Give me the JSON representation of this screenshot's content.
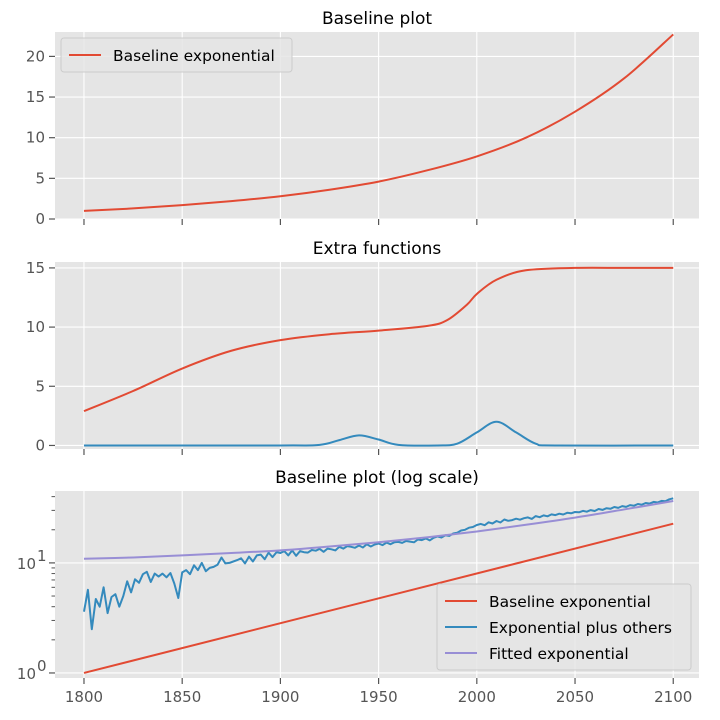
{
  "colors": {
    "axes_bg": "#E5E5E5",
    "grid": "#FFFFFF",
    "tick": "#555555",
    "red": "#E24A33",
    "blue": "#348ABD",
    "purple": "#988ED5"
  },
  "chart_data": [
    {
      "type": "line",
      "title": "Baseline plot",
      "xlim": [
        1800,
        2100
      ],
      "ylim": [
        0,
        23
      ],
      "xticks": [
        1800,
        1850,
        1900,
        1950,
        2000,
        2050,
        2100
      ],
      "yticks": [
        0,
        5,
        10,
        15,
        20
      ],
      "ytick_labels": [
        "0",
        "5",
        "10",
        "15",
        "20"
      ],
      "show_xtick_labels": false,
      "legend": {
        "location": "upper left"
      },
      "series": [
        {
          "name": "Baseline exponential",
          "color": "#E24A33",
          "x": [
            1800,
            1825,
            1850,
            1875,
            1900,
            1925,
            1950,
            1975,
            2000,
            2025,
            2050,
            2075,
            2100
          ],
          "y": [
            1.0,
            1.3,
            1.7,
            2.2,
            2.8,
            3.6,
            4.6,
            6.0,
            7.7,
            10.0,
            13.2,
            17.3,
            22.7
          ]
        }
      ]
    },
    {
      "type": "line",
      "title": "Extra functions",
      "xlim": [
        1800,
        2100
      ],
      "ylim": [
        -0.3,
        15.5
      ],
      "xticks": [
        1800,
        1850,
        1900,
        1950,
        2000,
        2050,
        2100
      ],
      "yticks": [
        0,
        5,
        10,
        15
      ],
      "ytick_labels": [
        "0",
        "5",
        "10",
        "15"
      ],
      "show_xtick_labels": false,
      "series": [
        {
          "color": "#E24A33",
          "x": [
            1800,
            1825,
            1850,
            1875,
            1900,
            1925,
            1950,
            1975,
            1985,
            1995,
            2000,
            2010,
            2025,
            2050,
            2075,
            2100
          ],
          "y": [
            2.9,
            4.6,
            6.5,
            8.0,
            8.9,
            9.4,
            9.7,
            10.1,
            10.6,
            11.9,
            12.8,
            14.0,
            14.8,
            15.0,
            15.0,
            15.0
          ],
          "smooth": true
        },
        {
          "color": "#348ABD",
          "x": [
            1800,
            1900,
            1920,
            1930,
            1940,
            1950,
            1960,
            1980,
            1990,
            2000,
            2010,
            2020,
            2030,
            2040,
            2100
          ],
          "y": [
            0,
            0,
            0.05,
            0.45,
            0.85,
            0.5,
            0.05,
            0,
            0.15,
            1.1,
            2.0,
            1.1,
            0.15,
            0,
            0
          ],
          "smooth": true
        }
      ]
    },
    {
      "type": "line",
      "title": "Baseline plot (log scale)",
      "yscale": "log",
      "xlim": [
        1800,
        2100
      ],
      "ylim": [
        0.9,
        45
      ],
      "xticks": [
        1800,
        1850,
        1900,
        1950,
        2000,
        2050,
        2100
      ],
      "xtick_labels": [
        "1800",
        "1850",
        "1900",
        "1950",
        "2000",
        "2050",
        "2100"
      ],
      "ytick_major": [
        1,
        10
      ],
      "ytick_labels": [
        "10",
        "10"
      ],
      "ytick_exponents": [
        "0",
        "1"
      ],
      "legend": {
        "location": "lower right"
      },
      "series": [
        {
          "name": "Baseline exponential",
          "color": "#E24A33",
          "x": [
            1800,
            2100
          ],
          "y": [
            1.0,
            22.7
          ]
        },
        {
          "name": "Exponential plus others",
          "color": "#348ABD",
          "x": [
            1800,
            1802,
            1804,
            1806,
            1808,
            1810,
            1812,
            1814,
            1816,
            1818,
            1820,
            1822,
            1824,
            1826,
            1828,
            1830,
            1832,
            1834,
            1836,
            1838,
            1840,
            1842,
            1844,
            1846,
            1848,
            1850,
            1852,
            1854,
            1856,
            1858,
            1860,
            1862,
            1864,
            1866,
            1868,
            1870,
            1872,
            1874,
            1876,
            1878,
            1880,
            1882,
            1884,
            1886,
            1888,
            1890,
            1892,
            1894,
            1896,
            1898,
            1900,
            1902,
            1904,
            1906,
            1908,
            1910,
            1912,
            1914,
            1916,
            1918,
            1920,
            1922,
            1924,
            1926,
            1928,
            1930,
            1932,
            1934,
            1936,
            1938,
            1940,
            1942,
            1944,
            1946,
            1948,
            1950,
            1952,
            1954,
            1956,
            1958,
            1960,
            1962,
            1964,
            1966,
            1968,
            1970,
            1972,
            1974,
            1976,
            1978,
            1980,
            1982,
            1984,
            1986,
            1988,
            1990,
            1992,
            1994,
            1996,
            1998,
            2000,
            2002,
            2004,
            2006,
            2008,
            2010,
            2012,
            2014,
            2016,
            2018,
            2020,
            2022,
            2024,
            2026,
            2028,
            2030,
            2032,
            2034,
            2036,
            2038,
            2040,
            2042,
            2044,
            2046,
            2048,
            2050,
            2052,
            2054,
            2056,
            2058,
            2060,
            2062,
            2064,
            2066,
            2068,
            2070,
            2072,
            2074,
            2076,
            2078,
            2080,
            2082,
            2084,
            2086,
            2088,
            2090,
            2092,
            2094,
            2096,
            2098,
            2100
          ],
          "y": [
            3.6,
            5.7,
            2.5,
            4.7,
            4.0,
            6.0,
            3.5,
            4.9,
            5.2,
            4.0,
            5.0,
            6.8,
            5.4,
            7.1,
            6.6,
            7.9,
            8.3,
            6.7,
            8.0,
            7.5,
            8.0,
            7.4,
            8.1,
            6.5,
            4.8,
            8.2,
            8.6,
            7.9,
            9.5,
            8.6,
            10.0,
            8.4,
            9.0,
            9.2,
            9.6,
            11.2,
            9.9,
            10.0,
            10.3,
            10.6,
            11.0,
            9.9,
            11.4,
            10.3,
            11.7,
            11.9,
            10.8,
            12.4,
            11.3,
            12.5,
            12.3,
            12.8,
            11.7,
            13.0,
            11.6,
            12.8,
            12.5,
            12.4,
            13.1,
            12.9,
            13.4,
            12.6,
            13.5,
            13.3,
            13.0,
            14.0,
            13.5,
            14.2,
            14.0,
            13.7,
            14.4,
            13.8,
            14.8,
            14.1,
            14.7,
            15.0,
            14.5,
            15.3,
            14.8,
            15.4,
            15.5,
            15.2,
            15.8,
            15.6,
            15.4,
            16.3,
            16.1,
            16.7,
            16.0,
            16.9,
            17.4,
            17.0,
            17.8,
            17.6,
            18.5,
            18.8,
            19.7,
            20.0,
            20.9,
            21.2,
            22.1,
            22.6,
            22.0,
            23.4,
            22.8,
            24.0,
            23.3,
            24.8,
            24.1,
            24.5,
            25.2,
            24.7,
            25.5,
            25.9,
            25.1,
            26.6,
            26.0,
            27.0,
            26.5,
            27.6,
            27.2,
            28.0,
            27.5,
            28.5,
            28.2,
            29.0,
            28.8,
            29.7,
            29.2,
            30.2,
            29.6,
            30.9,
            30.3,
            31.4,
            31.0,
            32.2,
            31.6,
            32.8,
            32.3,
            33.5,
            33.1,
            34.3,
            33.8,
            35.0,
            34.6,
            35.8,
            35.4,
            36.6,
            36.3,
            37.8,
            38.6
          ]
        },
        {
          "name": "Fitted exponential",
          "color": "#988ED5",
          "x": [
            1800,
            1825,
            1850,
            1875,
            1900,
            1925,
            1950,
            1975,
            2000,
            2025,
            2050,
            2075,
            2100
          ],
          "y": [
            10.9,
            11.2,
            11.7,
            12.3,
            13.0,
            14.1,
            15.4,
            17.1,
            19.3,
            22.2,
            25.8,
            30.6,
            36.5
          ]
        }
      ]
    }
  ]
}
